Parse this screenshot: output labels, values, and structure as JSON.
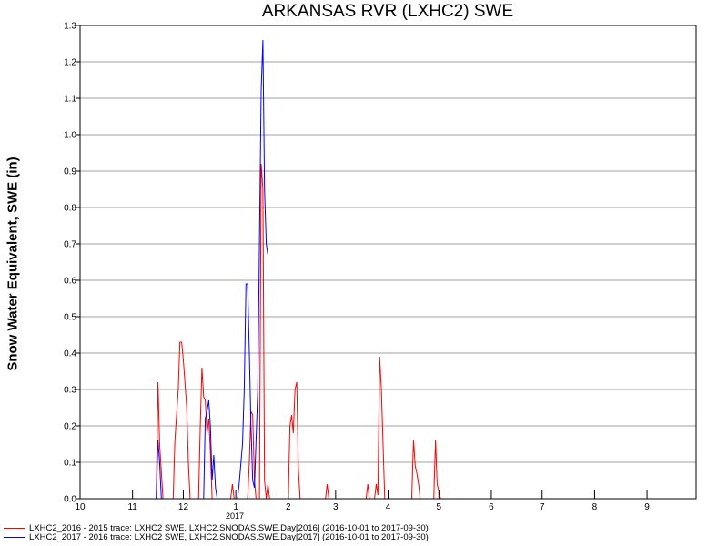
{
  "chart_data": {
    "type": "line",
    "title": "ARKANSAS RVR (LXHC2) SWE",
    "ylabel": "Snow Water Equivalent, SWE (in)",
    "xlabel": "",
    "ylim": [
      0,
      1.3
    ],
    "xlim": [
      "2016-10-01",
      "2017-09-30"
    ],
    "x_tick_labels": [
      "10",
      "11",
      "12",
      "1",
      "2",
      "3",
      "4",
      "5",
      "6",
      "7",
      "8",
      "9"
    ],
    "x_year_label": "2017",
    "y_tick_labels": [
      "0.0",
      "0.1",
      "0.2",
      "0.3",
      "0.4",
      "0.5",
      "0.6",
      "0.7",
      "0.8",
      "0.9",
      "1.0",
      "1.1",
      "1.2",
      "1.3"
    ],
    "grid": true,
    "series": [
      {
        "name": "LXHC2_2016 - 2015 trace: LXHC2 SWE, LXHC2.SNODAS.SWE.Day[2016] (2016-10-01 to 2017-09-30)",
        "color": "#ff0000",
        "points": [
          [
            "2016-11-15",
            0
          ],
          [
            "2016-11-16",
            0.32
          ],
          [
            "2016-11-17",
            0.15
          ],
          [
            "2016-11-19",
            0
          ],
          [
            "2016-11-25",
            0
          ],
          [
            "2016-11-26",
            0.16
          ],
          [
            "2016-11-28",
            0.3
          ],
          [
            "2016-11-29",
            0.43
          ],
          [
            "2016-11-30",
            0.43
          ],
          [
            "2016-12-01",
            0.38
          ],
          [
            "2016-12-03",
            0.25
          ],
          [
            "2016-12-04",
            0.1
          ],
          [
            "2016-12-05",
            0
          ],
          [
            "2016-12-10",
            0
          ],
          [
            "2016-12-11",
            0.2
          ],
          [
            "2016-12-12",
            0.36
          ],
          [
            "2016-12-13",
            0.28
          ],
          [
            "2016-12-14",
            0.27
          ],
          [
            "2016-12-15",
            0.18
          ],
          [
            "2016-12-16",
            0.22
          ],
          [
            "2016-12-17",
            0.13
          ],
          [
            "2016-12-18",
            0
          ],
          [
            "2016-12-29",
            0
          ],
          [
            "2016-12-30",
            0.04
          ],
          [
            "2016-12-31",
            0
          ],
          [
            "2017-01-08",
            0
          ],
          [
            "2017-01-09",
            0.1
          ],
          [
            "2017-01-10",
            0.24
          ],
          [
            "2017-01-11",
            0.23
          ],
          [
            "2017-01-12",
            0.05
          ],
          [
            "2017-01-13",
            0
          ],
          [
            "2017-01-15",
            0
          ],
          [
            "2017-01-16",
            0.92
          ],
          [
            "2017-01-17",
            0.85
          ],
          [
            "2017-01-18",
            0.05
          ],
          [
            "2017-01-19",
            0
          ],
          [
            "2017-01-19",
            0
          ],
          [
            "2017-01-20",
            0.04
          ],
          [
            "2017-01-21",
            0
          ],
          [
            "2017-02-01",
            0
          ],
          [
            "2017-02-02",
            0.2
          ],
          [
            "2017-02-03",
            0.23
          ],
          [
            "2017-02-04",
            0.18
          ],
          [
            "2017-02-05",
            0.3
          ],
          [
            "2017-02-06",
            0.32
          ],
          [
            "2017-02-07",
            0.08
          ],
          [
            "2017-02-08",
            0
          ],
          [
            "2017-02-23",
            0
          ],
          [
            "2017-02-24",
            0.04
          ],
          [
            "2017-02-25",
            0
          ],
          [
            "2017-03-19",
            0
          ],
          [
            "2017-03-20",
            0.04
          ],
          [
            "2017-03-21",
            0
          ],
          [
            "2017-03-24",
            0
          ],
          [
            "2017-03-25",
            0.04
          ],
          [
            "2017-03-26",
            0.01
          ],
          [
            "2017-03-27",
            0.39
          ],
          [
            "2017-03-28",
            0.3
          ],
          [
            "2017-03-30",
            0
          ],
          [
            "2017-04-15",
            0
          ],
          [
            "2017-04-16",
            0.16
          ],
          [
            "2017-04-17",
            0.09
          ],
          [
            "2017-04-18",
            0.07
          ],
          [
            "2017-04-19",
            0.04
          ],
          [
            "2017-04-20",
            0
          ],
          [
            "2017-04-28",
            0
          ],
          [
            "2017-04-29",
            0.16
          ],
          [
            "2017-04-30",
            0.04
          ],
          [
            "2017-05-01",
            0.02
          ],
          [
            "2017-05-02",
            0
          ]
        ]
      },
      {
        "name": "LXHC2_2017 - 2016 trace: LXHC2 SWE, LXHC2.SNODAS.SWE.Day[2017] (2016-10-01 to 2017-09-30)",
        "color": "#0000ff",
        "points": [
          [
            "2016-11-15",
            0
          ],
          [
            "2016-11-16",
            0.16
          ],
          [
            "2016-11-17",
            0.1
          ],
          [
            "2016-11-18",
            0
          ],
          [
            "2016-12-13",
            0
          ],
          [
            "2016-12-14",
            0.22
          ],
          [
            "2016-12-15",
            0.24
          ],
          [
            "2016-12-16",
            0.27
          ],
          [
            "2016-12-17",
            0.2
          ],
          [
            "2016-12-18",
            0.05
          ],
          [
            "2016-12-19",
            0.12
          ],
          [
            "2016-12-20",
            0.03
          ],
          [
            "2016-12-21",
            0
          ],
          [
            "2017-01-02",
            0
          ],
          [
            "2017-01-03",
            0.04
          ],
          [
            "2017-01-05",
            0.15
          ],
          [
            "2017-01-06",
            0.3
          ],
          [
            "2017-01-07",
            0.59
          ],
          [
            "2017-01-08",
            0.59
          ],
          [
            "2017-01-09",
            0.4
          ],
          [
            "2017-01-10",
            0.2
          ],
          [
            "2017-01-11",
            0.05
          ],
          [
            "2017-01-12",
            0.03
          ],
          [
            "2017-01-14",
            0.3
          ],
          [
            "2017-01-15",
            0.7
          ],
          [
            "2017-01-16",
            1.12
          ],
          [
            "2017-01-17",
            1.26
          ],
          [
            "2017-01-18",
            0.85
          ],
          [
            "2017-01-19",
            0.7
          ],
          [
            "2017-01-20",
            0.67
          ]
        ]
      }
    ]
  }
}
